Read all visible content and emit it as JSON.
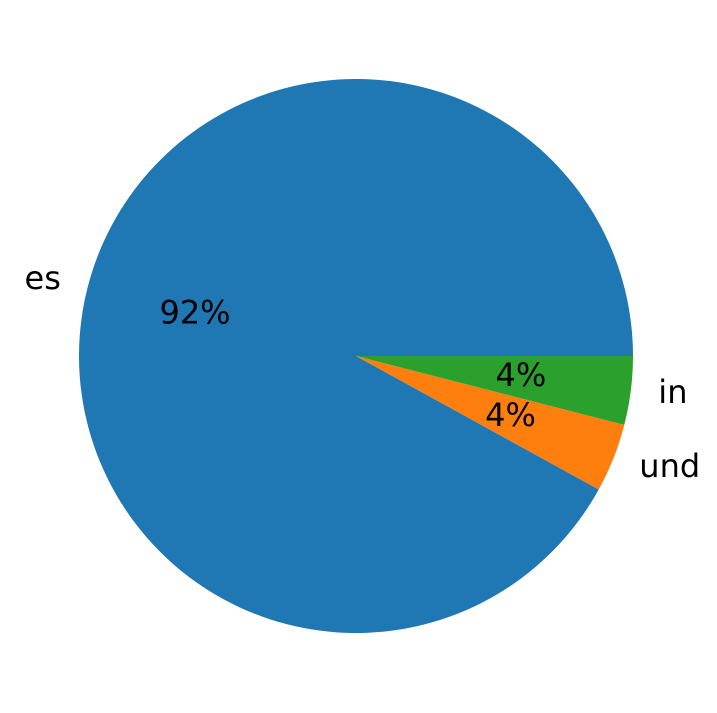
{
  "chart_data": {
    "type": "pie",
    "categories": [
      "es",
      "und",
      "in"
    ],
    "values": [
      92,
      4,
      4
    ],
    "value_labels": [
      "92%",
      "4%",
      "4%"
    ],
    "colors": [
      "#1f77b4",
      "#ff7f0e",
      "#2ca02c"
    ],
    "start_angle": 0,
    "counterclock": true
  }
}
